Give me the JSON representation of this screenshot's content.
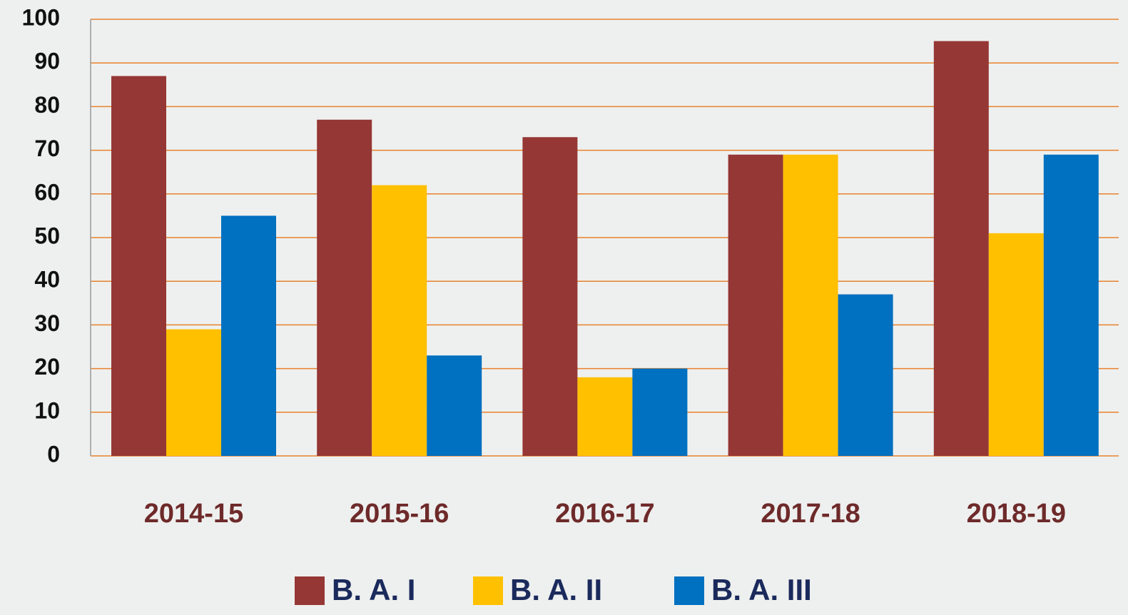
{
  "chart_data": {
    "type": "bar",
    "categories": [
      "2014-15",
      "2015-16",
      "2016-17",
      "2017-18",
      "2018-19"
    ],
    "series": [
      {
        "name": "B. A. I",
        "color": "#953735",
        "values": [
          87,
          77,
          73,
          69,
          95
        ]
      },
      {
        "name": "B. A. II",
        "color": "#ffc000",
        "values": [
          29,
          62,
          18,
          69,
          51
        ]
      },
      {
        "name": "B. A. III",
        "color": "#0070c0",
        "values": [
          55,
          23,
          20,
          37,
          69
        ]
      }
    ],
    "ylim": [
      0,
      100
    ],
    "yticks": [
      0,
      10,
      20,
      30,
      40,
      50,
      60,
      70,
      80,
      90,
      100
    ],
    "grid": true,
    "grid_color": "#e8822e",
    "legend": "bottom"
  }
}
